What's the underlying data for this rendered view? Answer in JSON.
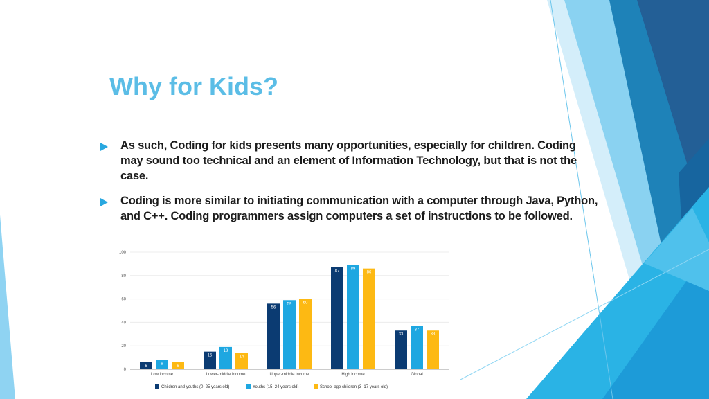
{
  "slide": {
    "title": "Why for Kids?",
    "bullets": [
      "As such, Coding for kids presents many opportunities, especially for children. Coding may sound too technical and an element of Information Technology, but that is not the case.",
      "Coding is more similar to initiating communication with a computer through Java, Python, and C++. Coding programmers assign computers a set of instructions to be followed."
    ],
    "bullet_icon": "triangle-arrow-right-icon"
  },
  "colors": {
    "title": "#5bbde6",
    "bullet_arrow": "#29a8e0",
    "series": [
      "#0b3b72",
      "#1ea7e1",
      "#fdb913"
    ]
  },
  "chart_data": {
    "type": "bar",
    "categories": [
      "Low income",
      "Lower-middle income",
      "Upper-middle income",
      "High income",
      "Global"
    ],
    "series": [
      {
        "name": "Children and youths (0–25 years old)",
        "values": [
          6,
          15,
          56,
          87,
          33
        ]
      },
      {
        "name": "Youths (15–24 years old)",
        "values": [
          8,
          19,
          59,
          89,
          37
        ]
      },
      {
        "name": "School-age children (3–17 years old)",
        "values": [
          6,
          14,
          60,
          86,
          33
        ]
      }
    ],
    "value_labels": [
      [
        "6",
        "15",
        "56",
        "87",
        "33"
      ],
      [
        "8",
        "19",
        "59",
        "89",
        "37"
      ],
      [
        "6",
        "14",
        "60",
        "86",
        "33"
      ]
    ],
    "ylim": [
      0,
      100
    ],
    "yticks": [
      "0",
      "20",
      "40",
      "60",
      "80",
      "100"
    ],
    "grid": true,
    "legend_position": "bottom",
    "title": "",
    "xlabel": "",
    "ylabel": ""
  }
}
